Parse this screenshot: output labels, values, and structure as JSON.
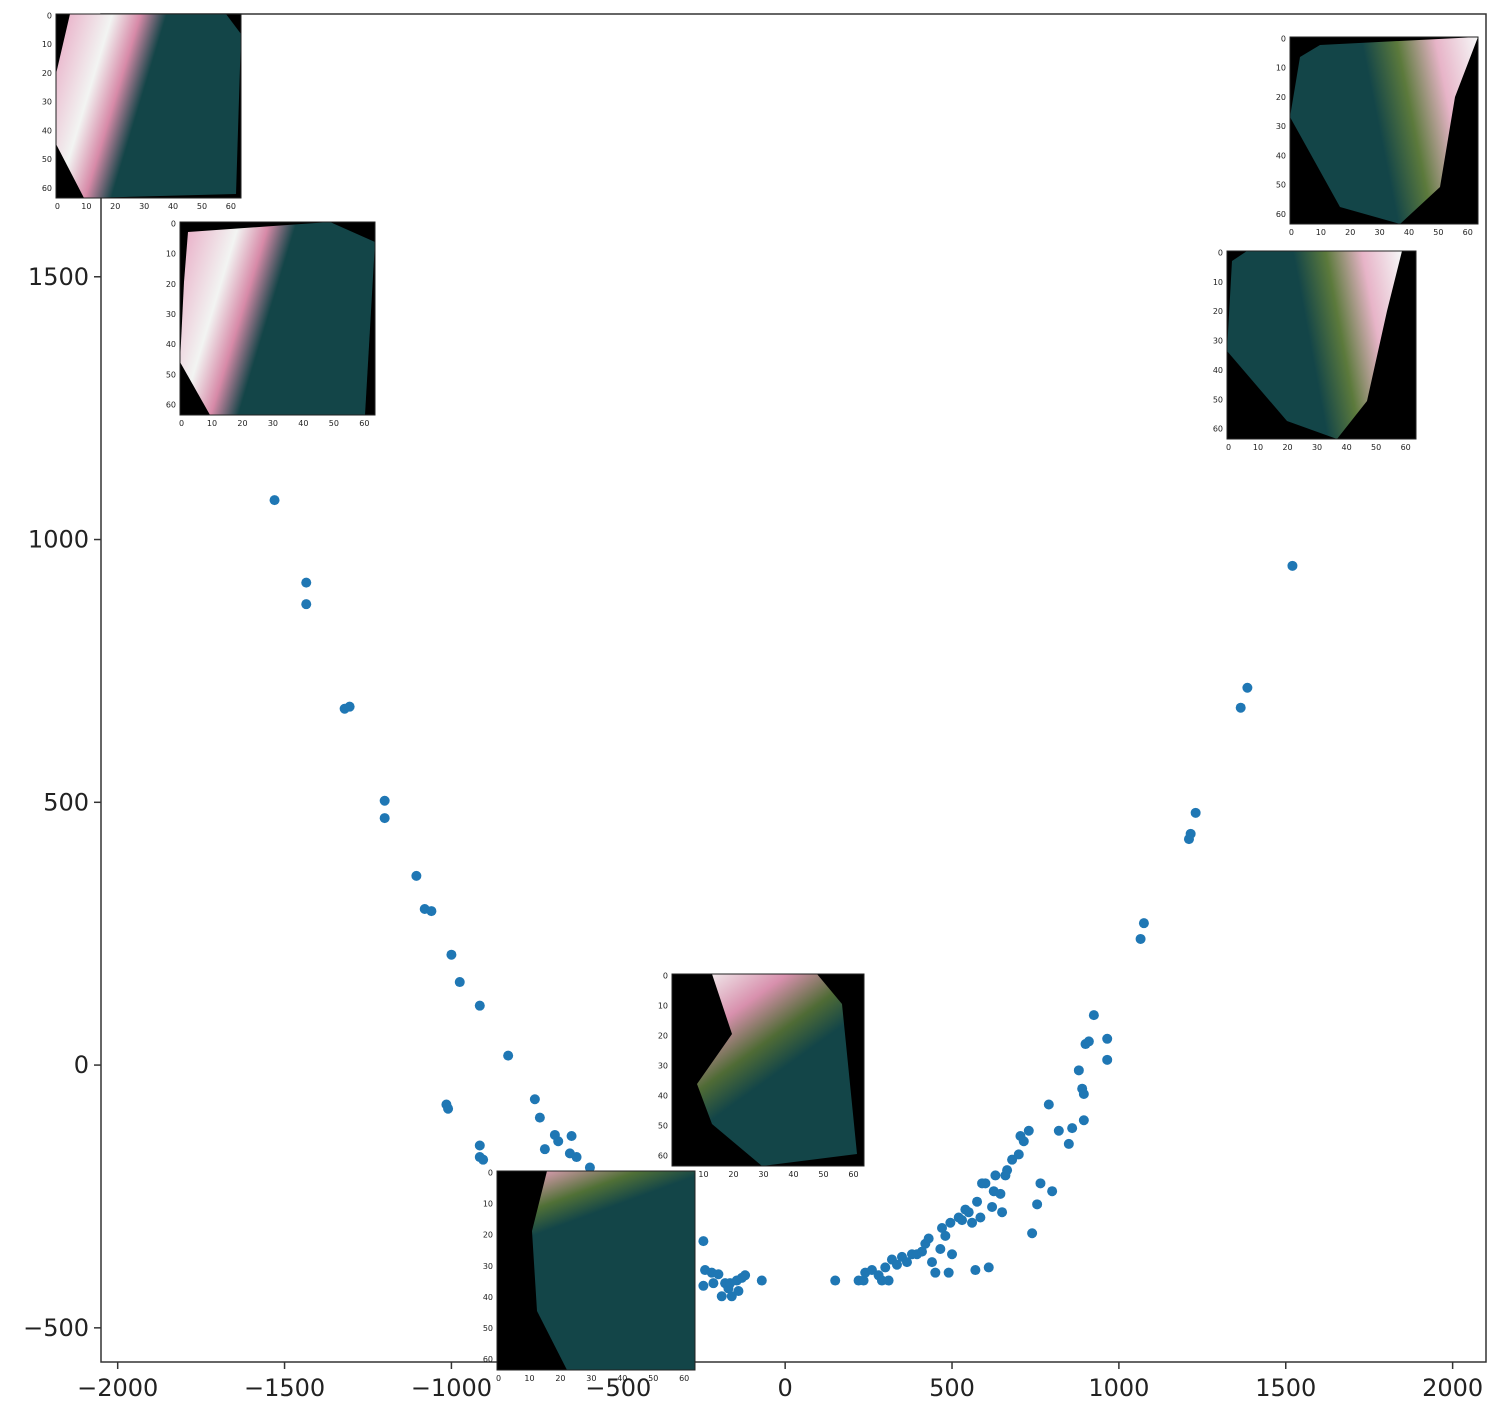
{
  "chart_data": {
    "type": "scatter",
    "title": "",
    "xlabel": "",
    "ylabel": "",
    "xlim": [
      -2050,
      2100
    ],
    "ylim": [
      -565,
      2000
    ],
    "x_ticks": [
      -2000,
      -1500,
      -1000,
      -500,
      0,
      500,
      1000,
      1500,
      2000
    ],
    "x_tick_labels": [
      "−2000",
      "−1500",
      "−1000",
      "−500",
      "0",
      "500",
      "1000",
      "1500",
      "2000"
    ],
    "y_ticks": [
      -500,
      0,
      500,
      1000,
      1500
    ],
    "y_tick_labels": [
      "−500",
      "0",
      "500",
      "1000",
      "1500"
    ],
    "grid": false,
    "marker_color": "#1f77b4",
    "series": [
      {
        "points": [
          [
            -1530,
            1075
          ],
          [
            -1435,
            918
          ],
          [
            -1435,
            877
          ],
          [
            -1320,
            678
          ],
          [
            -1305,
            682
          ],
          [
            -1200,
            503
          ],
          [
            -1200,
            470
          ],
          [
            -1105,
            360
          ],
          [
            -1080,
            297
          ],
          [
            -1060,
            293
          ],
          [
            -1000,
            210
          ],
          [
            -975,
            158
          ],
          [
            -915,
            113
          ],
          [
            -830,
            18
          ],
          [
            -1015,
            -75
          ],
          [
            -1010,
            -83
          ],
          [
            -915,
            -153
          ],
          [
            -915,
            -175
          ],
          [
            -905,
            -180
          ],
          [
            -750,
            -65
          ],
          [
            -735,
            -100
          ],
          [
            -720,
            -160
          ],
          [
            -690,
            -133
          ],
          [
            -680,
            -145
          ],
          [
            -645,
            -168
          ],
          [
            -640,
            -135
          ],
          [
            -625,
            -175
          ],
          [
            -585,
            -195
          ],
          [
            -535,
            -245
          ],
          [
            -245,
            -335
          ],
          [
            -240,
            -390
          ],
          [
            -245,
            -420
          ],
          [
            -220,
            -395
          ],
          [
            -215,
            -415
          ],
          [
            -200,
            -398
          ],
          [
            -190,
            -440
          ],
          [
            -180,
            -415
          ],
          [
            -170,
            -425
          ],
          [
            -165,
            -415
          ],
          [
            -160,
            -440
          ],
          [
            -145,
            -410
          ],
          [
            -140,
            -430
          ],
          [
            -130,
            -405
          ],
          [
            -120,
            -400
          ],
          [
            -70,
            -410
          ],
          [
            150,
            -410
          ],
          [
            220,
            -410
          ],
          [
            235,
            -410
          ],
          [
            240,
            -395
          ],
          [
            260,
            -390
          ],
          [
            280,
            -400
          ],
          [
            290,
            -410
          ],
          [
            300,
            -385
          ],
          [
            310,
            -410
          ],
          [
            320,
            -370
          ],
          [
            335,
            -380
          ],
          [
            350,
            -365
          ],
          [
            365,
            -375
          ],
          [
            380,
            -360
          ],
          [
            395,
            -360
          ],
          [
            410,
            -355
          ],
          [
            420,
            -340
          ],
          [
            430,
            -330
          ],
          [
            440,
            -375
          ],
          [
            450,
            -395
          ],
          [
            465,
            -350
          ],
          [
            470,
            -310
          ],
          [
            480,
            -325
          ],
          [
            490,
            -395
          ],
          [
            495,
            -300
          ],
          [
            500,
            -360
          ],
          [
            520,
            -290
          ],
          [
            530,
            -295
          ],
          [
            540,
            -275
          ],
          [
            550,
            -280
          ],
          [
            560,
            -300
          ],
          [
            570,
            -390
          ],
          [
            575,
            -260
          ],
          [
            585,
            -290
          ],
          [
            590,
            -225
          ],
          [
            600,
            -225
          ],
          [
            610,
            -385
          ],
          [
            620,
            -270
          ],
          [
            625,
            -240
          ],
          [
            630,
            -210
          ],
          [
            645,
            -245
          ],
          [
            650,
            -280
          ],
          [
            660,
            -210
          ],
          [
            665,
            -200
          ],
          [
            680,
            -180
          ],
          [
            700,
            -170
          ],
          [
            705,
            -135
          ],
          [
            715,
            -145
          ],
          [
            730,
            -125
          ],
          [
            740,
            -320
          ],
          [
            755,
            -265
          ],
          [
            765,
            -225
          ],
          [
            790,
            -75
          ],
          [
            800,
            -240
          ],
          [
            820,
            -125
          ],
          [
            850,
            -150
          ],
          [
            860,
            -120
          ],
          [
            880,
            -10
          ],
          [
            890,
            -45
          ],
          [
            895,
            -55
          ],
          [
            895,
            -105
          ],
          [
            900,
            40
          ],
          [
            910,
            45
          ],
          [
            925,
            95
          ],
          [
            965,
            10
          ],
          [
            965,
            50
          ],
          [
            1065,
            240
          ],
          [
            1075,
            270
          ],
          [
            1210,
            430
          ],
          [
            1215,
            440
          ],
          [
            1230,
            480
          ],
          [
            1365,
            680
          ],
          [
            1385,
            718
          ],
          [
            1520,
            950
          ]
        ]
      }
    ],
    "insets": [
      {
        "ticks": [
          "0",
          "10",
          "20",
          "30",
          "40",
          "50",
          "60"
        ]
      }
    ]
  }
}
